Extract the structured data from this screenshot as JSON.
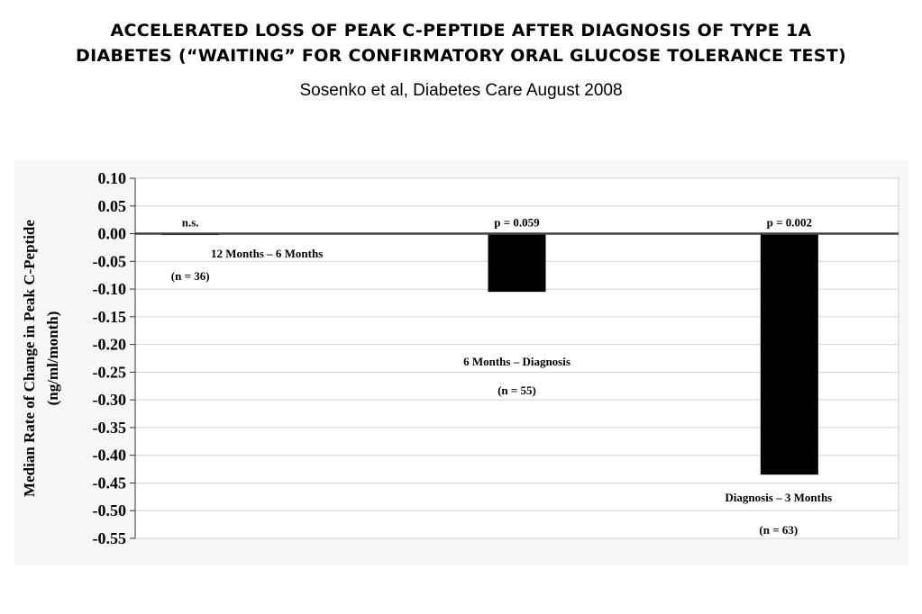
{
  "header": {
    "title_line1": "ACCELERATED LOSS OF PEAK C-PEPTIDE AFTER DIAGNOSIS OF TYPE 1A",
    "title_line2": "DIABETES (“WAITING” FOR CONFIRMATORY ORAL GLUCOSE TOLERANCE TEST)",
    "subtitle": "Sosenko et al, Diabetes Care August 2008"
  },
  "chart_data": {
    "type": "bar",
    "ylabel_line1": "Median Rate of Change in Peak C-Peptide",
    "ylabel_line2": "(ng/ml/month)",
    "ylim": [
      -0.55,
      0.1
    ],
    "yticks": [
      "0.10",
      "0.05",
      "0.00",
      "-0.05",
      "-0.10",
      "-0.15",
      "-0.20",
      "-0.25",
      "-0.30",
      "-0.35",
      "-0.40",
      "-0.45",
      "-0.50",
      "-0.55"
    ],
    "ytick_values": [
      0.1,
      0.05,
      0.0,
      -0.05,
      -0.1,
      -0.15,
      -0.2,
      -0.25,
      -0.3,
      -0.35,
      -0.4,
      -0.45,
      -0.5,
      -0.55
    ],
    "grid": true,
    "bar_color": "#000000",
    "bars": [
      {
        "category": "12 Months – 6 Months",
        "n_label": "(n = 36)",
        "p_label": "n.s.",
        "value": -0.002
      },
      {
        "category": "6 Months – Diagnosis",
        "n_label": "(n = 55)",
        "p_label": "p = 0.059",
        "value": -0.105
      },
      {
        "category": "Diagnosis – 3 Months",
        "n_label": "(n = 63)",
        "p_label": "p = 0.002",
        "value": -0.435
      }
    ]
  }
}
